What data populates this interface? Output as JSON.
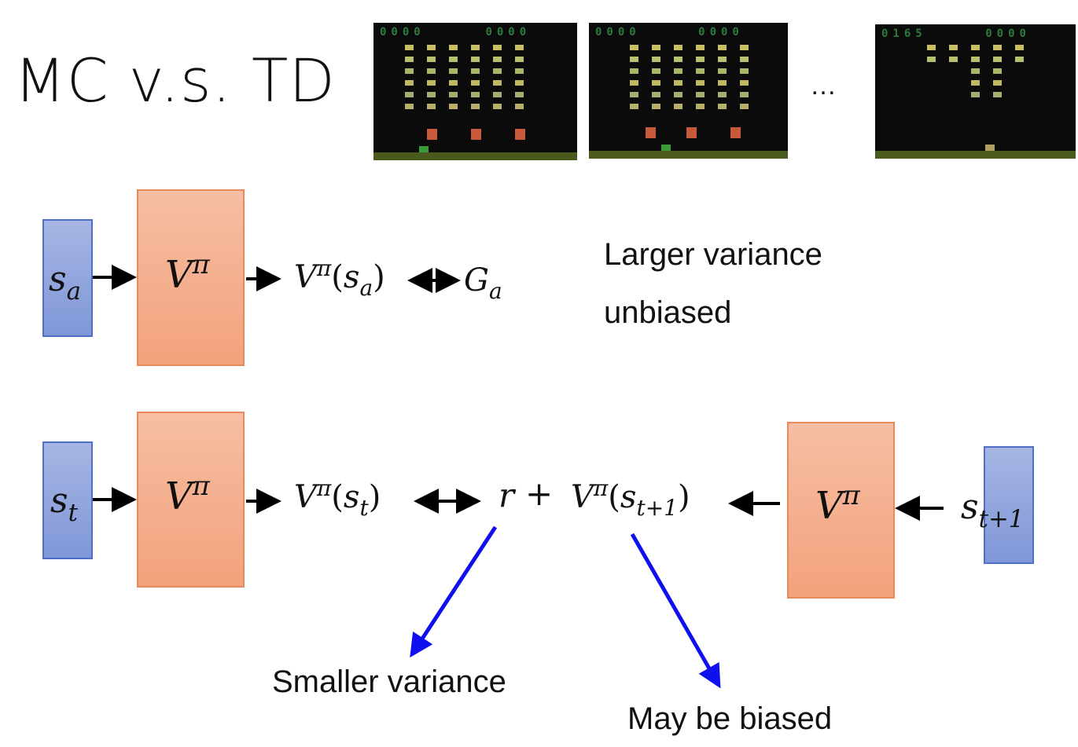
{
  "title": "MC v.s. TD",
  "ellipsis": "…",
  "screenshots": [
    {
      "score_left": "0000",
      "score_right": "0000"
    },
    {
      "score_left": "0000",
      "score_right": "0000"
    },
    {
      "score_left": "0165",
      "score_right": "0000"
    }
  ],
  "mc": {
    "state": {
      "base": "s",
      "sub": "a"
    },
    "network": {
      "base": "V",
      "sup": "π"
    },
    "output": {
      "base": "V",
      "sup": "π",
      "arg_base": "s",
      "arg_sub": "a"
    },
    "target": {
      "base": "G",
      "sub": "a"
    },
    "note_line1": "Larger variance",
    "note_line2": "unbiased"
  },
  "td": {
    "state": {
      "base": "s",
      "sub": "t"
    },
    "network": {
      "base": "V",
      "sup": "π"
    },
    "output": {
      "base": "V",
      "sup": "π",
      "arg_base": "s",
      "arg_sub": "t"
    },
    "reward": "r",
    "plus": "+",
    "next_value": {
      "base": "V",
      "sup": "π",
      "arg_base": "s",
      "arg_sub": "t+1"
    },
    "next_network": {
      "base": "V",
      "sup": "π"
    },
    "next_state": {
      "base": "s",
      "sub": "t+1"
    },
    "annotation_reward": "Smaller variance",
    "annotation_next": "May be biased"
  },
  "colors": {
    "state_box": "#8ea2dc",
    "network_box": "#f4ae8d",
    "blue_arrow": "#1010ee"
  }
}
